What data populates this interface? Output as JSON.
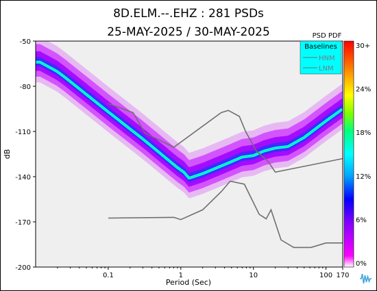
{
  "chart_data": {
    "type": "heatmap",
    "title": "8D.ELM.--.EHZ : 281 PSDs",
    "subtitle": "25-MAY-2025 / 30-MAY-2025",
    "xlabel": "Period (Sec)",
    "ylabel": "dB",
    "x_scale": "log",
    "xlim": [
      0.01,
      170
    ],
    "ylim": [
      -200,
      -50
    ],
    "x_ticks": [
      {
        "value": 0.1,
        "label": "0.1"
      },
      {
        "value": 1,
        "label": "1"
      },
      {
        "value": 10,
        "label": "10"
      },
      {
        "value": 100,
        "label": "100"
      },
      {
        "value": 170,
        "label": "170"
      }
    ],
    "y_ticks": [
      {
        "value": -50,
        "label": "-50"
      },
      {
        "value": -80,
        "label": "-80"
      },
      {
        "value": -110,
        "label": "-110"
      },
      {
        "value": -140,
        "label": "-140"
      },
      {
        "value": -170,
        "label": "-170"
      },
      {
        "value": -200,
        "label": "-200"
      }
    ],
    "colorbar": {
      "title": "PSD PDF",
      "ticks": [
        "30+",
        "24%",
        "18%",
        "12%",
        "6%",
        "0%"
      ],
      "colors": [
        "#ff0000",
        "#ff7f00",
        "#ffff00",
        "#7fff00",
        "#00ff80",
        "#00ffff",
        "#00a0ff",
        "#0000ff",
        "#8000ff",
        "#ff00ff",
        "#ffffff"
      ]
    },
    "legend": {
      "title": "Baselines",
      "position": "top-right",
      "background": "#00ffff",
      "entries": [
        "HNM",
        "LNM"
      ]
    },
    "noise_models": {
      "color": "#6e6e6e",
      "HNM": [
        [
          0.1,
          -167.5
        ],
        [
          0.8,
          -167
        ],
        [
          1.0,
          -168.5
        ],
        [
          2.0,
          -162
        ],
        [
          3.6,
          -150
        ],
        [
          4.8,
          -143
        ],
        [
          7.5,
          -145
        ],
        [
          12,
          -165
        ],
        [
          15,
          -168
        ],
        [
          17.5,
          -162
        ],
        [
          24,
          -182
        ],
        [
          36,
          -187
        ],
        [
          62,
          -187
        ],
        [
          100,
          -184
        ],
        [
          170,
          -184
        ]
      ],
      "LNM": [
        [
          0.1,
          -91.5
        ],
        [
          0.22,
          -97.5
        ],
        [
          0.32,
          -111
        ],
        [
          0.8,
          -120.5
        ],
        [
          3.6,
          -97.5
        ],
        [
          4.5,
          -96
        ],
        [
          6.4,
          -100
        ],
        [
          7.8,
          -110
        ],
        [
          11,
          -123
        ],
        [
          16,
          -130
        ],
        [
          20,
          -137
        ],
        [
          170,
          -128
        ]
      ]
    },
    "mode": [
      [
        0.0115,
        -64
      ],
      [
        0.0195,
        -70
      ],
      [
        0.0245,
        -73.5
      ],
      [
        0.1,
        -97
      ],
      [
        0.3,
        -115
      ],
      [
        0.6,
        -127
      ],
      [
        0.9,
        -134
      ],
      [
        1.1,
        -137
      ],
      [
        1.3,
        -141
      ],
      [
        2.0,
        -138
      ],
      [
        4.0,
        -132
      ],
      [
        7.0,
        -127
      ],
      [
        10,
        -126
      ],
      [
        14,
        -123
      ],
      [
        20,
        -121
      ],
      [
        30,
        -120
      ],
      [
        50,
        -114
      ],
      [
        100,
        -103
      ],
      [
        170,
        -95
      ]
    ],
    "spread_width_db": 12,
    "background": "#efefef"
  }
}
